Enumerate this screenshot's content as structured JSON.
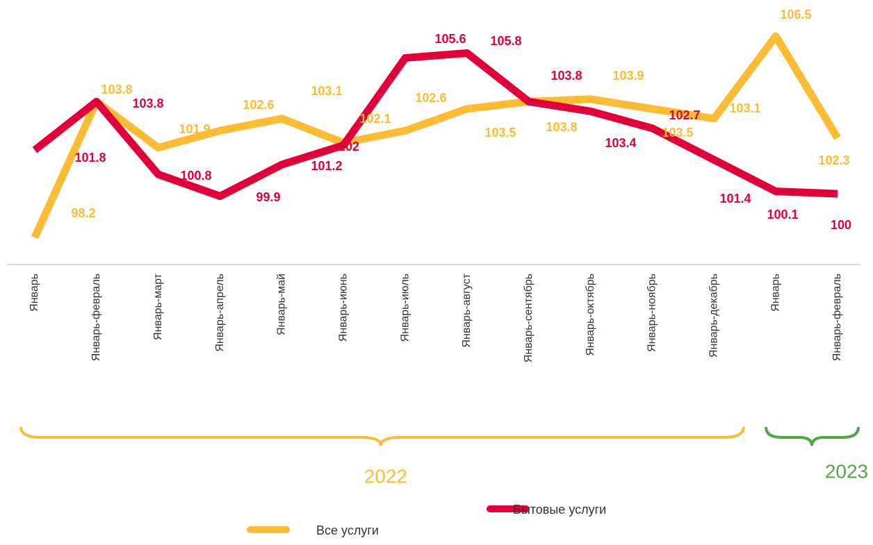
{
  "chart_data": {
    "type": "line",
    "categories": [
      "Январь",
      "Январь-февраль",
      "Январь-март",
      "Январь-апрель",
      "Январь-май",
      "Январь-июнь",
      "Январь-июль",
      "Январь-август",
      "Январь-сентябрь",
      "Январь-октябрь",
      "Январь-ноябрь",
      "Январь-декабрь",
      "Январь",
      "Январь-февраль"
    ],
    "series": [
      {
        "name": "Все услуги",
        "color": "#fbbc33",
        "values": [
          98.2,
          103.8,
          101.9,
          102.6,
          103.1,
          102.1,
          102.6,
          103.5,
          103.8,
          103.9,
          103.5,
          103.1,
          106.5,
          102.3
        ]
      },
      {
        "name": "Бытовые услуги",
        "color": "#e2003a",
        "values": [
          101.8,
          103.8,
          100.8,
          99.9,
          101.2,
          102.0,
          105.6,
          105.8,
          103.8,
          103.4,
          102.7,
          101.4,
          100.1,
          100.0
        ]
      }
    ],
    "annotations": [
      {
        "text": "2022",
        "color": "#fbbc33"
      },
      {
        "text": "2023",
        "color": "#4ea843"
      }
    ]
  }
}
